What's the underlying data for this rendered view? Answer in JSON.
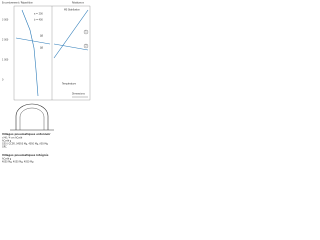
{
  "header": {
    "left": "Encombrement / Répartition",
    "right": "Résistance"
  },
  "chart": {
    "y_labels": [
      "3 000",
      "2 000",
      "1 000",
      "0"
    ],
    "annotations": [
      "a = 200",
      "b = 400",
      "ΔB",
      "ΔB",
      "MS Stahlbeton",
      "Température"
    ],
    "markers": [
      "1",
      "2"
    ],
    "dimensions": "Dimensions"
  },
  "section": {
    "title": "Villages pneumatiques entonnoir",
    "lines": [
      "d 40 / 4 cm ACodé",
      "ACodé g",
      "G50 / GCSR, 04050 Mg, 4050 Mg, ASS-Mg",
      "GRC"
    ]
  },
  "section2": {
    "title": "Villages pneumatiques intégrés",
    "lines": [
      "ACodé g",
      "4050 Mg, 4050 Mg, 4050 Mg"
    ]
  }
}
